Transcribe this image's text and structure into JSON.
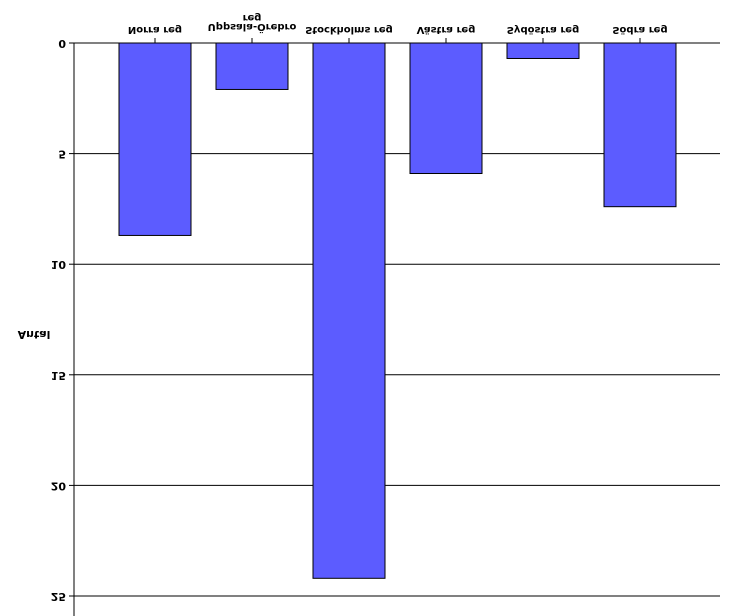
{
  "chart_data": {
    "type": "bar",
    "orientation": "vertical",
    "rendered_upside_down": true,
    "ylabel": "Antal",
    "ylim": [
      0,
      25
    ],
    "yticks": [
      0,
      5,
      10,
      15,
      20,
      25
    ],
    "ytick_labels": [
      "0",
      "5",
      "10",
      "15",
      "20",
      "25"
    ],
    "grid": true,
    "categories": [
      "Norra reg",
      "Uppsala-Örebro reg",
      "Stockholms reg",
      "Västra reg",
      "Sydöstra reg",
      "Södra reg"
    ],
    "category_lines": [
      [
        "Norra reg"
      ],
      [
        "reg",
        "Uppsala-Örebro"
      ],
      [
        "Stockholms reg"
      ],
      [
        "Västra reg"
      ],
      [
        "Sydöstra reg"
      ],
      [
        "Södra reg"
      ]
    ],
    "values": [
      8.7,
      2.1,
      24.2,
      5.9,
      0.7,
      7.4
    ],
    "colors": {
      "bar_fill": "#5c5cff",
      "bar_stroke": "#000000",
      "grid": "#000000"
    }
  }
}
